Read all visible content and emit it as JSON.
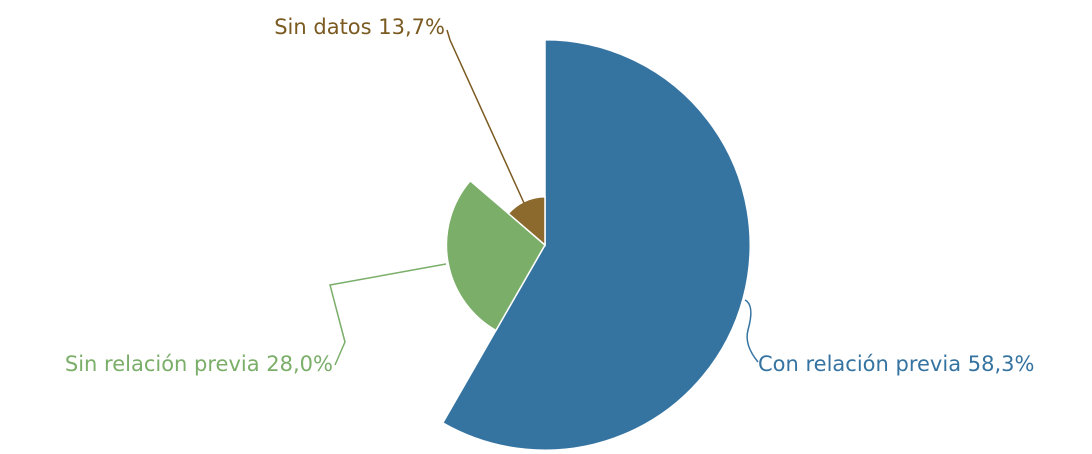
{
  "chart_data": {
    "type": "pie",
    "categories": [
      "Con relación previa",
      "Sin relación previa",
      "Sin datos"
    ],
    "values": [
      58.3,
      28.0,
      13.7
    ],
    "value_labels": [
      "58,3%",
      "28,0%",
      "13,7%"
    ],
    "colors": [
      "#3573a1",
      "#7aae69",
      "#8c6a2d"
    ]
  }
}
